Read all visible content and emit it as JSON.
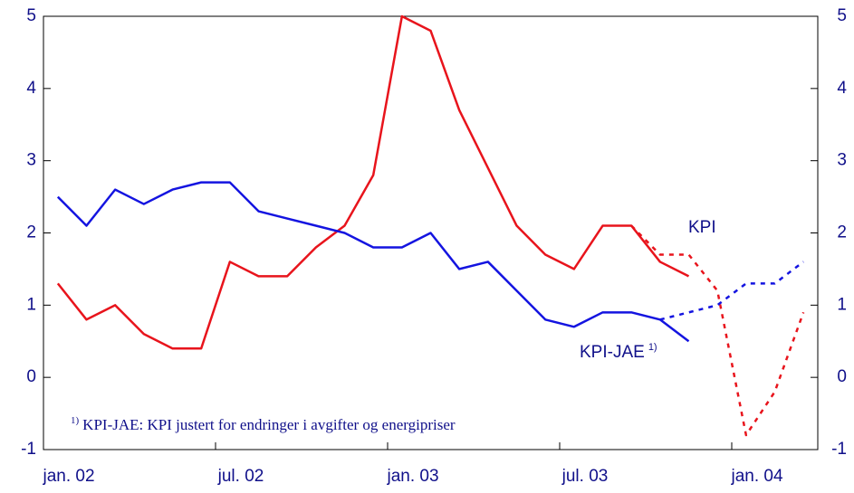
{
  "chart_data": {
    "type": "line",
    "x": [
      0.5,
      1.5,
      2.5,
      3.5,
      4.5,
      5.5,
      6.5,
      7.5,
      8.5,
      9.5,
      10.5,
      11.5,
      12.5,
      13.5,
      14.5,
      15.5,
      16.5,
      17.5,
      18.5,
      19.5,
      20.5,
      21.5,
      22.5,
      23.5,
      24.5,
      25.5,
      26.5
    ],
    "xlim": [
      0,
      27
    ],
    "xticks": [
      {
        "value": 0,
        "label": "jan. 02"
      },
      {
        "value": 6,
        "label": "jul. 02"
      },
      {
        "value": 12,
        "label": "jan. 03"
      },
      {
        "value": 18,
        "label": "jul. 03"
      },
      {
        "value": 24,
        "label": "jan. 04"
      }
    ],
    "ylim": [
      -1,
      5
    ],
    "yticks": [
      -1,
      0,
      1,
      2,
      3,
      4,
      5
    ],
    "y2lim": [
      -1,
      5
    ],
    "y2ticks": [
      -1,
      0,
      1,
      2,
      3,
      4,
      5
    ],
    "series": [
      {
        "name": "KPI",
        "color": "#e8141c",
        "values": [
          1.3,
          0.8,
          1.0,
          0.6,
          0.4,
          0.4,
          1.6,
          1.4,
          1.4,
          1.8,
          2.1,
          2.8,
          5.0,
          4.8,
          3.7,
          2.9,
          2.1,
          1.7,
          1.5,
          2.1,
          2.1,
          1.6,
          1.4,
          null,
          null,
          null,
          null
        ],
        "forecast": [
          null,
          null,
          null,
          null,
          null,
          null,
          null,
          null,
          null,
          null,
          null,
          null,
          null,
          null,
          null,
          null,
          null,
          null,
          null,
          null,
          2.1,
          1.7,
          1.7,
          1.2,
          -0.8,
          -0.2,
          0.9
        ]
      },
      {
        "name": "KPI-JAE",
        "note": "1)",
        "color": "#1414e0",
        "values": [
          2.5,
          2.1,
          2.6,
          2.4,
          2.6,
          2.7,
          2.7,
          2.3,
          2.2,
          2.1,
          2.0,
          1.8,
          1.8,
          2.0,
          1.5,
          1.6,
          1.2,
          0.8,
          0.7,
          0.9,
          0.9,
          0.8,
          0.5,
          null,
          null,
          null,
          null
        ],
        "forecast": [
          null,
          null,
          null,
          null,
          null,
          null,
          null,
          null,
          null,
          null,
          null,
          null,
          null,
          null,
          null,
          null,
          null,
          null,
          null,
          null,
          null,
          0.8,
          0.9,
          1.0,
          1.3,
          1.3,
          1.6
        ]
      }
    ],
    "footnote": {
      "mark": "1)",
      "text": "KPI-JAE: KPI justert for endringer i avgifter og energipriser"
    }
  }
}
